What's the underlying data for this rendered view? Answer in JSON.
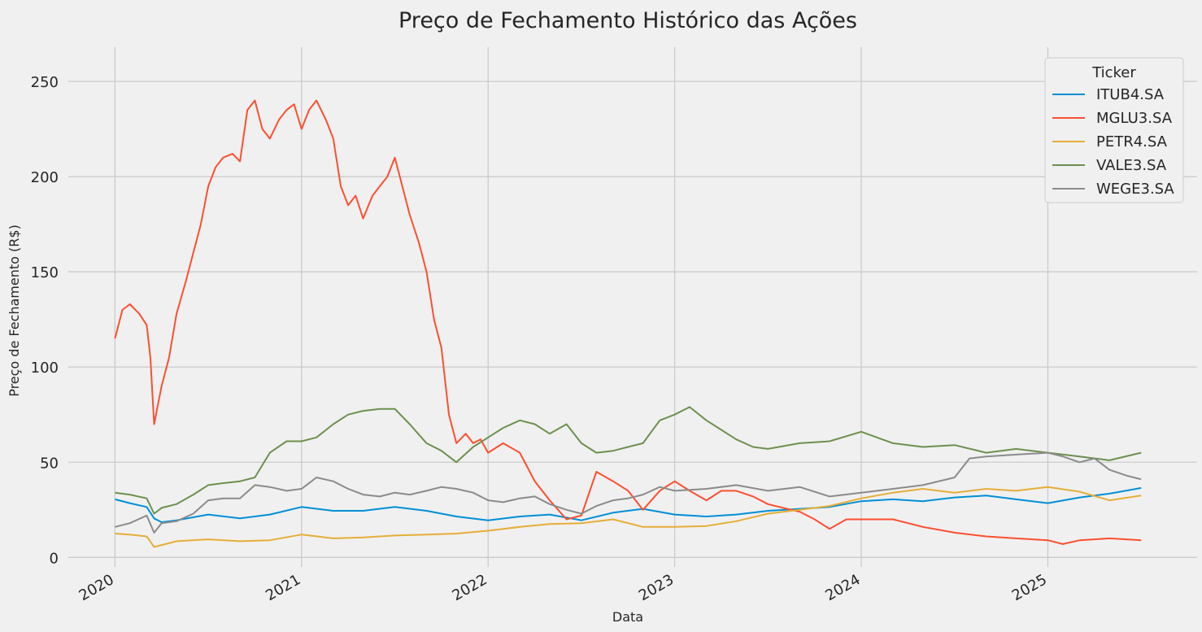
{
  "chart_data": {
    "type": "line",
    "title": "Preço de Fechamento Histórico das Ações",
    "xlabel": "Data",
    "ylabel": "Preço de Fechamento (R$)",
    "xlim": [
      2019.75,
      2025.8
    ],
    "ylim": [
      -5,
      268
    ],
    "xticks": [
      2020,
      2021,
      2022,
      2023,
      2024,
      2025
    ],
    "xtick_labels": [
      "2020",
      "2021",
      "2022",
      "2023",
      "2024",
      "2025"
    ],
    "yticks": [
      0,
      50,
      100,
      150,
      200,
      250
    ],
    "ytick_labels": [
      "0",
      "50",
      "100",
      "150",
      "200",
      "250"
    ],
    "grid": true,
    "legend": {
      "title": "Ticker",
      "placement": "top-right"
    },
    "series": [
      {
        "name": "ITUB4.SA",
        "color": "#008fd5",
        "x": [
          2020.0,
          2020.08,
          2020.17,
          2020.21,
          2020.25,
          2020.33,
          2020.5,
          2020.67,
          2020.83,
          2021.0,
          2021.17,
          2021.33,
          2021.5,
          2021.67,
          2021.83,
          2022.0,
          2022.17,
          2022.33,
          2022.5,
          2022.67,
          2022.83,
          2023.0,
          2023.17,
          2023.33,
          2023.5,
          2023.67,
          2023.83,
          2024.0,
          2024.17,
          2024.33,
          2024.5,
          2024.67,
          2024.83,
          2025.0,
          2025.17,
          2025.33,
          2025.5
        ],
        "y": [
          30.5,
          28.5,
          26.5,
          20.5,
          18.5,
          19.5,
          22.5,
          20.5,
          22.5,
          26.5,
          24.5,
          24.5,
          26.5,
          24.5,
          21.5,
          19.5,
          21.5,
          22.5,
          19.5,
          23.5,
          25.5,
          22.5,
          21.5,
          22.5,
          24.5,
          25.5,
          26.5,
          29.5,
          30.5,
          29.5,
          31.5,
          32.5,
          30.5,
          28.5,
          31.5,
          33.5,
          36.5
        ]
      },
      {
        "name": "MGLU3.SA",
        "color": "#fc4f30",
        "x": [
          2020.0,
          2020.04,
          2020.08,
          2020.13,
          2020.17,
          2020.19,
          2020.21,
          2020.25,
          2020.29,
          2020.33,
          2020.38,
          2020.42,
          2020.46,
          2020.5,
          2020.54,
          2020.58,
          2020.63,
          2020.67,
          2020.71,
          2020.75,
          2020.79,
          2020.83,
          2020.88,
          2020.92,
          2020.96,
          2021.0,
          2021.04,
          2021.08,
          2021.13,
          2021.17,
          2021.21,
          2021.25,
          2021.29,
          2021.33,
          2021.38,
          2021.42,
          2021.46,
          2021.5,
          2021.54,
          2021.58,
          2021.63,
          2021.67,
          2021.71,
          2021.75,
          2021.79,
          2021.83,
          2021.88,
          2021.92,
          2021.96,
          2022.0,
          2022.08,
          2022.17,
          2022.25,
          2022.33,
          2022.42,
          2022.5,
          2022.58,
          2022.67,
          2022.75,
          2022.83,
          2022.92,
          2023.0,
          2023.08,
          2023.17,
          2023.25,
          2023.33,
          2023.42,
          2023.5,
          2023.58,
          2023.67,
          2023.75,
          2023.83,
          2023.92,
          2024.0,
          2024.17,
          2024.33,
          2024.5,
          2024.67,
          2024.83,
          2025.0,
          2025.08,
          2025.17,
          2025.33,
          2025.5
        ],
        "y": [
          115,
          130,
          133,
          128,
          122,
          105,
          70,
          90,
          105,
          128,
          145,
          160,
          175,
          195,
          205,
          210,
          212,
          208,
          235,
          240,
          225,
          220,
          230,
          235,
          238,
          225,
          235,
          240,
          230,
          220,
          195,
          185,
          190,
          178,
          190,
          195,
          200,
          210,
          195,
          180,
          165,
          150,
          125,
          110,
          75,
          60,
          65,
          60,
          62,
          55,
          60,
          55,
          40,
          30,
          20,
          22,
          45,
          40,
          35,
          25,
          35,
          40,
          35,
          30,
          35,
          35,
          32,
          28,
          26,
          24,
          20,
          15,
          20,
          20,
          20,
          16,
          13,
          11,
          10,
          9,
          7,
          9,
          10,
          9
        ]
      },
      {
        "name": "PETR4.SA",
        "color": "#e5ae38",
        "x": [
          2020.0,
          2020.08,
          2020.17,
          2020.21,
          2020.25,
          2020.33,
          2020.5,
          2020.67,
          2020.83,
          2021.0,
          2021.17,
          2021.33,
          2021.5,
          2021.67,
          2021.83,
          2022.0,
          2022.17,
          2022.33,
          2022.5,
          2022.67,
          2022.83,
          2023.0,
          2023.17,
          2023.33,
          2023.5,
          2023.67,
          2023.83,
          2024.0,
          2024.17,
          2024.33,
          2024.5,
          2024.67,
          2024.83,
          2025.0,
          2025.17,
          2025.33,
          2025.5
        ],
        "y": [
          12.5,
          12.0,
          11.0,
          5.5,
          6.5,
          8.5,
          9.5,
          8.5,
          9.0,
          12.0,
          10.0,
          10.5,
          11.5,
          12.0,
          12.5,
          14.0,
          16.0,
          17.5,
          18.0,
          20.0,
          16.0,
          16.0,
          16.5,
          19.0,
          23.0,
          25.0,
          27.0,
          31.0,
          34.0,
          36.0,
          34.0,
          36.0,
          35.0,
          37.0,
          34.5,
          30.0,
          32.5
        ]
      },
      {
        "name": "VALE3.SA",
        "color": "#6d904f",
        "x": [
          2020.0,
          2020.08,
          2020.17,
          2020.21,
          2020.25,
          2020.33,
          2020.42,
          2020.5,
          2020.58,
          2020.67,
          2020.75,
          2020.83,
          2020.92,
          2021.0,
          2021.08,
          2021.17,
          2021.25,
          2021.33,
          2021.42,
          2021.5,
          2021.58,
          2021.67,
          2021.75,
          2021.83,
          2021.92,
          2022.0,
          2022.08,
          2022.17,
          2022.25,
          2022.33,
          2022.42,
          2022.5,
          2022.58,
          2022.67,
          2022.75,
          2022.83,
          2022.92,
          2023.0,
          2023.08,
          2023.17,
          2023.25,
          2023.33,
          2023.42,
          2023.5,
          2023.67,
          2023.83,
          2024.0,
          2024.17,
          2024.33,
          2024.5,
          2024.67,
          2024.83,
          2025.0,
          2025.17,
          2025.33,
          2025.5
        ],
        "y": [
          34,
          33,
          31,
          23,
          26,
          28,
          33,
          38,
          39,
          40,
          42,
          55,
          61,
          61,
          63,
          70,
          75,
          77,
          78,
          78,
          70,
          60,
          56,
          50,
          58,
          63,
          68,
          72,
          70,
          65,
          70,
          60,
          55,
          56,
          58,
          60,
          72,
          75,
          79,
          72,
          67,
          62,
          58,
          57,
          60,
          61,
          66,
          60,
          58,
          59,
          55,
          57,
          55,
          53,
          51,
          55
        ]
      },
      {
        "name": "WEGE3.SA",
        "color": "#8b8b8b",
        "x": [
          2020.0,
          2020.08,
          2020.17,
          2020.21,
          2020.25,
          2020.33,
          2020.42,
          2020.5,
          2020.58,
          2020.67,
          2020.75,
          2020.83,
          2020.92,
          2021.0,
          2021.08,
          2021.17,
          2021.25,
          2021.33,
          2021.42,
          2021.5,
          2021.58,
          2021.67,
          2021.75,
          2021.83,
          2021.92,
          2022.0,
          2022.08,
          2022.17,
          2022.25,
          2022.33,
          2022.42,
          2022.5,
          2022.58,
          2022.67,
          2022.75,
          2022.83,
          2022.92,
          2023.0,
          2023.17,
          2023.33,
          2023.5,
          2023.67,
          2023.83,
          2024.0,
          2024.17,
          2024.33,
          2024.5,
          2024.58,
          2024.67,
          2024.83,
          2025.0,
          2025.08,
          2025.17,
          2025.25,
          2025.33,
          2025.42,
          2025.5
        ],
        "y": [
          16,
          18,
          22,
          13,
          18,
          19,
          23,
          30,
          31,
          31,
          38,
          37,
          35,
          36,
          42,
          40,
          36,
          33,
          32,
          34,
          33,
          35,
          37,
          36,
          34,
          30,
          29,
          31,
          32,
          28,
          25,
          23,
          27,
          30,
          31,
          33,
          37,
          35,
          36,
          38,
          35,
          37,
          32,
          34,
          36,
          38,
          42,
          52,
          53,
          54,
          55,
          53,
          50,
          52,
          46,
          43,
          41
        ]
      }
    ]
  }
}
